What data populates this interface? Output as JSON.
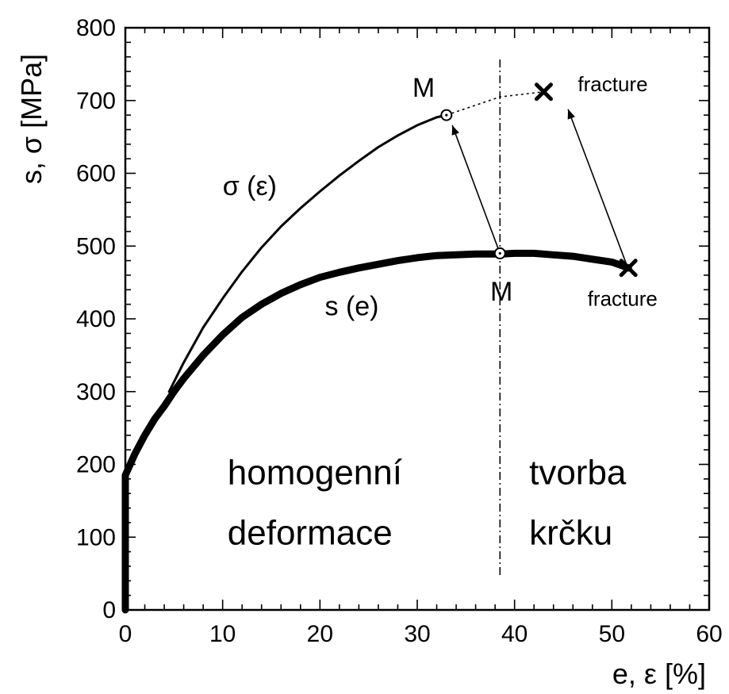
{
  "chart_data": {
    "type": "line",
    "xlabel": "e, ε  [%]",
    "ylabel": "s, σ  [MPa]",
    "xlim": [
      0,
      60
    ],
    "ylim": [
      0,
      800
    ],
    "x_ticks": [
      0,
      10,
      20,
      30,
      40,
      50,
      60
    ],
    "y_ticks": [
      0,
      100,
      200,
      300,
      400,
      500,
      600,
      700,
      800
    ],
    "grid": false,
    "series": [
      {
        "name": "s (e)",
        "style": "thick",
        "color": "#000000",
        "points": [
          [
            0,
            0
          ],
          [
            0,
            50
          ],
          [
            0,
            100
          ],
          [
            0,
            150
          ],
          [
            0,
            185
          ],
          [
            0.5,
            200
          ],
          [
            1,
            215
          ],
          [
            2,
            240
          ],
          [
            3,
            262
          ],
          [
            4,
            280
          ],
          [
            5,
            300
          ],
          [
            6,
            318
          ],
          [
            8,
            350
          ],
          [
            10,
            378
          ],
          [
            12,
            402
          ],
          [
            14,
            420
          ],
          [
            16,
            435
          ],
          [
            18,
            447
          ],
          [
            20,
            457
          ],
          [
            22,
            464
          ],
          [
            24,
            470
          ],
          [
            26,
            475
          ],
          [
            28,
            480
          ],
          [
            30,
            484
          ],
          [
            32,
            487
          ],
          [
            34,
            488
          ],
          [
            36,
            489
          ],
          [
            38.5,
            489
          ],
          [
            40,
            490
          ],
          [
            42,
            490
          ],
          [
            44,
            488
          ],
          [
            46,
            486
          ],
          [
            48,
            482
          ],
          [
            50,
            478
          ],
          [
            51.7,
            470
          ]
        ]
      },
      {
        "name": "σ (ε)",
        "style": "thin",
        "color": "#000000",
        "points": [
          [
            4.5,
            300
          ],
          [
            6,
            340
          ],
          [
            8,
            388
          ],
          [
            10,
            428
          ],
          [
            12,
            465
          ],
          [
            14,
            498
          ],
          [
            16,
            527
          ],
          [
            18,
            552
          ],
          [
            20,
            575
          ],
          [
            22,
            597
          ],
          [
            24,
            617
          ],
          [
            26,
            636
          ],
          [
            28,
            652
          ],
          [
            30,
            666
          ],
          [
            32,
            677
          ],
          [
            33,
            680
          ]
        ]
      }
    ],
    "extension": {
      "style": "dotted",
      "points": [
        [
          33,
          680
        ],
        [
          38.5,
          705
        ],
        [
          43,
          712
        ]
      ]
    },
    "markers": [
      {
        "x": 33,
        "y": 680,
        "shape": "circle"
      },
      {
        "x": 38.5,
        "y": 490,
        "shape": "circle"
      },
      {
        "x": 43,
        "y": 712,
        "shape": "cross"
      },
      {
        "x": 51.7,
        "y": 470,
        "shape": "cross"
      }
    ],
    "arrows": [
      {
        "from": [
          38.5,
          490
        ],
        "to": [
          33.6,
          666
        ]
      },
      {
        "from": [
          51.5,
          475
        ],
        "to": [
          45.5,
          688
        ]
      }
    ],
    "divider_x": 38.5,
    "annotations": {
      "sigma_curve": {
        "text": "σ (ε)",
        "x": 10,
        "y": 570
      },
      "s_curve": {
        "text": "s (e)",
        "x": 20.5,
        "y": 405
      },
      "m_upper": {
        "text": "M",
        "x": 29.5,
        "y": 705
      },
      "m_lower": {
        "text": "M",
        "x": 37.5,
        "y": 425
      },
      "fracture_upper": {
        "text": "fracture",
        "x": 46.5,
        "y": 713
      },
      "fracture_lower": {
        "text": "fracture",
        "x": 47.5,
        "y": 418
      },
      "region_left_1": {
        "text": "homogenní",
        "x": 10.5,
        "y": 173
      },
      "region_left_2": {
        "text": "deformace",
        "x": 10.5,
        "y": 90
      },
      "region_right_1": {
        "text": "tvorba",
        "x": 41.5,
        "y": 173
      },
      "region_right_2": {
        "text": "krčku",
        "x": 41.5,
        "y": 90
      }
    }
  }
}
